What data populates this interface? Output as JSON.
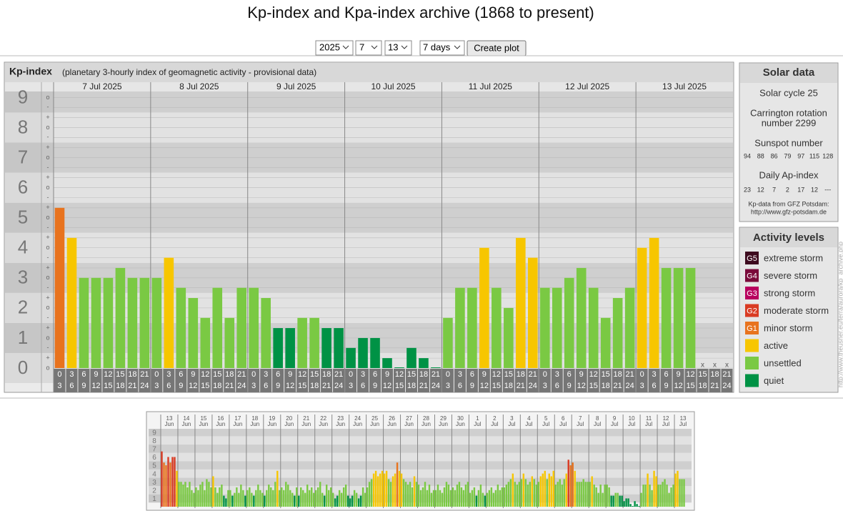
{
  "header": {
    "title": "Kp-index and Kpa-index archive (1868 to present)"
  },
  "controls": {
    "year": "2025",
    "month": "7",
    "day": "13",
    "span": "7 days",
    "button": "Create plot"
  },
  "chart_data": [
    {
      "type": "bar",
      "title": "Kp-index",
      "subtitle": "(planetary 3-hourly index of geomagnetic activity - provisional data)",
      "day_labels": [
        "7 Jul 2025",
        "8 Jul 2025",
        "9 Jul 2025",
        "10 Jul 2025",
        "11 Jul 2025",
        "12 Jul 2025",
        "13 Jul 2025"
      ],
      "categories": [
        [
          "0",
          "3"
        ],
        [
          "3",
          "6"
        ],
        [
          "6",
          "9"
        ],
        [
          "9",
          "12"
        ],
        [
          "12",
          "15"
        ],
        [
          "15",
          "18"
        ],
        [
          "18",
          "21"
        ],
        [
          "21",
          "24"
        ],
        [
          "0",
          "3"
        ],
        [
          "3",
          "6"
        ],
        [
          "6",
          "9"
        ],
        [
          "9",
          "12"
        ],
        [
          "12",
          "15"
        ],
        [
          "15",
          "18"
        ],
        [
          "18",
          "21"
        ],
        [
          "21",
          "24"
        ],
        [
          "0",
          "3"
        ],
        [
          "3",
          "6"
        ],
        [
          "6",
          "9"
        ],
        [
          "9",
          "12"
        ],
        [
          "12",
          "15"
        ],
        [
          "15",
          "18"
        ],
        [
          "18",
          "21"
        ],
        [
          "21",
          "24"
        ],
        [
          "0",
          "3"
        ],
        [
          "3",
          "6"
        ],
        [
          "6",
          "9"
        ],
        [
          "9",
          "12"
        ],
        [
          "12",
          "15"
        ],
        [
          "15",
          "18"
        ],
        [
          "18",
          "21"
        ],
        [
          "21",
          "24"
        ],
        [
          "0",
          "3"
        ],
        [
          "3",
          "6"
        ],
        [
          "6",
          "9"
        ],
        [
          "9",
          "12"
        ],
        [
          "12",
          "15"
        ],
        [
          "15",
          "18"
        ],
        [
          "18",
          "21"
        ],
        [
          "21",
          "24"
        ],
        [
          "0",
          "3"
        ],
        [
          "3",
          "6"
        ],
        [
          "6",
          "9"
        ],
        [
          "9",
          "12"
        ],
        [
          "12",
          "15"
        ],
        [
          "15",
          "18"
        ],
        [
          "18",
          "21"
        ],
        [
          "21",
          "24"
        ],
        [
          "0",
          "3"
        ],
        [
          "3",
          "6"
        ],
        [
          "6",
          "9"
        ],
        [
          "9",
          "12"
        ],
        [
          "12",
          "15"
        ],
        [
          "15",
          "18"
        ],
        [
          "18",
          "21"
        ],
        [
          "21",
          "24"
        ]
      ],
      "values": [
        5.33,
        4.33,
        3,
        3,
        3,
        3.33,
        3,
        3,
        3,
        3.67,
        2.67,
        2.33,
        1.67,
        2.67,
        1.67,
        2.67,
        2.67,
        2.33,
        1.33,
        1.33,
        1.67,
        1.67,
        1.33,
        1.33,
        0.67,
        1,
        1,
        0.33,
        0,
        0.67,
        0.33,
        0,
        1.67,
        2.67,
        2.67,
        4,
        2.67,
        2,
        4.33,
        3.67,
        2.67,
        2.67,
        3,
        3.33,
        2.67,
        1.67,
        2.33,
        2.67,
        4,
        4.33,
        3.33,
        3.33,
        3.33,
        null,
        null,
        null
      ],
      "colors": [
        "#e8731e",
        "#f7c600",
        "#7ac943",
        "#7ac943",
        "#7ac943",
        "#7ac943",
        "#7ac943",
        "#7ac943",
        "#7ac943",
        "#f7c600",
        "#7ac943",
        "#7ac943",
        "#7ac943",
        "#7ac943",
        "#7ac943",
        "#7ac943",
        "#7ac943",
        "#7ac943",
        "#009245",
        "#009245",
        "#7ac943",
        "#7ac943",
        "#009245",
        "#009245",
        "#009245",
        "#009245",
        "#009245",
        "#009245",
        "#009245",
        "#009245",
        "#009245",
        "#009245",
        "#7ac943",
        "#7ac943",
        "#7ac943",
        "#f7c600",
        "#7ac943",
        "#7ac943",
        "#f7c600",
        "#f7c600",
        "#7ac943",
        "#7ac943",
        "#7ac943",
        "#7ac943",
        "#7ac943",
        "#7ac943",
        "#7ac943",
        "#7ac943",
        "#f7c600",
        "#f7c600",
        "#7ac943",
        "#7ac943",
        "#7ac943",
        null,
        null,
        null
      ],
      "missing_label": "x",
      "ylim": [
        0,
        9.2
      ],
      "yticks": [
        0,
        1,
        2,
        3,
        4,
        5,
        6,
        7,
        8,
        9
      ],
      "minor_ticks": [
        {
          "value": 0,
          "label": "o"
        },
        {
          "value": 0.33,
          "label": "+"
        },
        {
          "value": 0.67,
          "label": "-"
        },
        {
          "value": 1,
          "label": "o"
        },
        {
          "value": 1.33,
          "label": "+"
        },
        {
          "value": 1.67,
          "label": "-"
        },
        {
          "value": 2,
          "label": "o"
        },
        {
          "value": 2.33,
          "label": "+"
        },
        {
          "value": 2.67,
          "label": "-"
        },
        {
          "value": 3,
          "label": "o"
        },
        {
          "value": 3.33,
          "label": "+"
        },
        {
          "value": 3.67,
          "label": "-"
        },
        {
          "value": 4,
          "label": "o"
        },
        {
          "value": 4.33,
          "label": "+"
        },
        {
          "value": 4.67,
          "label": "-"
        },
        {
          "value": 5,
          "label": "o"
        },
        {
          "value": 5.33,
          "label": "+"
        },
        {
          "value": 5.67,
          "label": "-"
        },
        {
          "value": 6,
          "label": "o"
        },
        {
          "value": 6.33,
          "label": "+"
        },
        {
          "value": 6.67,
          "label": "-"
        },
        {
          "value": 7,
          "label": "o"
        },
        {
          "value": 7.33,
          "label": "+"
        },
        {
          "value": 7.67,
          "label": "-"
        },
        {
          "value": 8,
          "label": "o"
        },
        {
          "value": 8.33,
          "label": "+"
        },
        {
          "value": 8.67,
          "label": "-"
        },
        {
          "value": 9,
          "label": "o"
        }
      ]
    },
    {
      "type": "bar",
      "day_labels": [
        [
          "13",
          "Jun"
        ],
        [
          "14",
          "Jun"
        ],
        [
          "15",
          "Jun"
        ],
        [
          "16",
          "Jun"
        ],
        [
          "17",
          "Jun"
        ],
        [
          "18",
          "Jun"
        ],
        [
          "19",
          "Jun"
        ],
        [
          "20",
          "Jun"
        ],
        [
          "21",
          "Jun"
        ],
        [
          "22",
          "Jun"
        ],
        [
          "23",
          "Jun"
        ],
        [
          "24",
          "Jun"
        ],
        [
          "25",
          "Jun"
        ],
        [
          "26",
          "Jun"
        ],
        [
          "27",
          "Jun"
        ],
        [
          "28",
          "Jun"
        ],
        [
          "29",
          "Jun"
        ],
        [
          "30",
          "Jun"
        ],
        [
          "1",
          "Jul"
        ],
        [
          "2",
          "Jul"
        ],
        [
          "3",
          "Jul"
        ],
        [
          "4",
          "Jul"
        ],
        [
          "5",
          "Jul"
        ],
        [
          "6",
          "Jul"
        ],
        [
          "7",
          "Jul"
        ],
        [
          "8",
          "Jul"
        ],
        [
          "9",
          "Jul"
        ],
        [
          "10",
          "Jul"
        ],
        [
          "11",
          "Jul"
        ],
        [
          "12",
          "Jul"
        ],
        [
          "13",
          "Jul"
        ]
      ],
      "values": [
        6.67,
        5.33,
        5,
        6,
        5.33,
        6,
        6,
        4.33,
        3,
        3,
        2.67,
        3,
        2.33,
        3,
        2,
        1.67,
        2.33,
        2,
        2.67,
        3,
        2,
        3.33,
        3,
        2.33,
        3.67,
        2.33,
        1.67,
        2.33,
        2.67,
        1.33,
        1,
        2,
        2,
        1.33,
        1.67,
        2.33,
        1.67,
        2.67,
        2,
        1.33,
        2,
        2.33,
        1.67,
        1.33,
        2,
        2.67,
        2,
        1.67,
        1.33,
        2,
        2.67,
        2.33,
        2,
        3,
        4.33,
        2,
        2.33,
        2,
        3,
        2.67,
        2,
        1.67,
        1.33,
        2.33,
        1.33,
        2.33,
        2,
        1.67,
        2.67,
        2,
        2.33,
        1.67,
        2,
        2.33,
        3,
        1.67,
        1.33,
        2.67,
        2,
        2.33,
        1.67,
        1,
        1.33,
        2,
        1.67,
        2.33,
        2.67,
        1.33,
        1,
        1.33,
        2,
        1.67,
        1,
        1.33,
        2.33,
        1.67,
        2.33,
        3,
        3.33,
        4,
        4.33,
        3.67,
        4,
        4.33,
        4,
        4.33,
        3.33,
        3,
        3.67,
        4,
        5.33,
        4.33,
        4,
        3.33,
        3,
        2.67,
        3,
        2.33,
        3.67,
        3,
        2.67,
        2,
        2.33,
        3,
        2,
        2.67,
        1.67,
        2,
        2,
        2.67,
        2,
        1.67,
        2.33,
        3,
        2.67,
        2,
        2.33,
        2,
        2.67,
        3,
        2.33,
        2,
        2.67,
        3,
        1.67,
        2,
        2.33,
        1.33,
        2,
        2.67,
        1.67,
        1.33,
        1.67,
        2,
        2.33,
        1.67,
        2,
        2.67,
        2,
        2.33,
        2.33,
        2.67,
        3,
        3.33,
        4,
        3,
        2.67,
        3,
        3.33,
        4,
        3.33,
        2.67,
        3,
        3.67,
        3.33,
        2.67,
        3,
        3.67,
        4,
        4.33,
        3.33,
        4,
        3.67,
        4.33,
        2.67,
        3,
        3.33,
        2.67,
        3.33,
        4,
        5.67,
        5,
        5.33,
        4.33,
        3,
        3,
        3,
        3.33,
        3,
        3,
        3,
        3.67,
        2.67,
        2.33,
        1.67,
        2.67,
        1.67,
        2.67,
        2.67,
        2.33,
        1.33,
        1.33,
        1.67,
        1.67,
        1.33,
        1.33,
        0.67,
        1,
        1,
        0.33,
        0,
        0.67,
        0.33,
        0,
        1.67,
        2.67,
        2.67,
        4,
        2.67,
        2,
        4.33,
        3.67,
        2.67,
        2.67,
        3,
        3.33,
        2.67,
        1.67,
        2.33,
        2.67,
        4,
        4.33,
        3.33,
        3.33,
        3.33,
        null,
        null,
        null
      ],
      "colors": [
        "#d93b23",
        "#e8731e",
        "#e8731e",
        "#d93b23",
        "#e8731e",
        "#d93b23",
        "#d93b23",
        "#f7c600",
        "#7ac943",
        "#7ac943",
        "#7ac943",
        "#7ac943",
        "#7ac943",
        "#7ac943",
        "#7ac943",
        "#7ac943",
        "#7ac943",
        "#7ac943",
        "#7ac943",
        "#7ac943",
        "#7ac943",
        "#7ac943",
        "#7ac943",
        "#7ac943",
        "#f7c600",
        "#7ac943",
        "#7ac943",
        "#7ac943",
        "#7ac943",
        "#009245",
        "#009245",
        "#7ac943",
        "#7ac943",
        "#009245",
        "#7ac943",
        "#7ac943",
        "#7ac943",
        "#7ac943",
        "#7ac943",
        "#009245",
        "#7ac943",
        "#7ac943",
        "#7ac943",
        "#009245",
        "#7ac943",
        "#7ac943",
        "#7ac943",
        "#7ac943",
        "#009245",
        "#7ac943",
        "#7ac943",
        "#7ac943",
        "#7ac943",
        "#7ac943",
        "#f7c600",
        "#7ac943",
        "#7ac943",
        "#7ac943",
        "#7ac943",
        "#7ac943",
        "#7ac943",
        "#7ac943",
        "#009245",
        "#7ac943",
        "#009245",
        "#7ac943",
        "#7ac943",
        "#7ac943",
        "#7ac943",
        "#7ac943",
        "#7ac943",
        "#7ac943",
        "#7ac943",
        "#7ac943",
        "#7ac943",
        "#7ac943",
        "#009245",
        "#7ac943",
        "#7ac943",
        "#7ac943",
        "#7ac943",
        "#009245",
        "#009245",
        "#7ac943",
        "#7ac943",
        "#7ac943",
        "#7ac943",
        "#009245",
        "#009245",
        "#009245",
        "#7ac943",
        "#7ac943",
        "#009245",
        "#009245",
        "#7ac943",
        "#7ac943",
        "#7ac943",
        "#7ac943",
        "#7ac943",
        "#f7c600",
        "#f7c600",
        "#f7c600",
        "#f7c600",
        "#f7c600",
        "#f7c600",
        "#f7c600",
        "#7ac943",
        "#7ac943",
        "#f7c600",
        "#f7c600",
        "#e8731e",
        "#f7c600",
        "#f7c600",
        "#7ac943",
        "#7ac943",
        "#7ac943",
        "#7ac943",
        "#7ac943",
        "#f7c600",
        "#7ac943",
        "#7ac943",
        "#7ac943",
        "#7ac943",
        "#7ac943",
        "#7ac943",
        "#7ac943",
        "#7ac943",
        "#7ac943",
        "#7ac943",
        "#7ac943",
        "#7ac943",
        "#7ac943",
        "#7ac943",
        "#7ac943",
        "#7ac943",
        "#7ac943",
        "#7ac943",
        "#7ac943",
        "#7ac943",
        "#7ac943",
        "#7ac943",
        "#7ac943",
        "#7ac943",
        "#7ac943",
        "#7ac943",
        "#7ac943",
        "#7ac943",
        "#009245",
        "#7ac943",
        "#7ac943",
        "#7ac943",
        "#009245",
        "#7ac943",
        "#7ac943",
        "#7ac943",
        "#7ac943",
        "#7ac943",
        "#7ac943",
        "#7ac943",
        "#7ac943",
        "#7ac943",
        "#7ac943",
        "#7ac943",
        "#7ac943",
        "#f7c600",
        "#7ac943",
        "#7ac943",
        "#7ac943",
        "#7ac943",
        "#f7c600",
        "#7ac943",
        "#7ac943",
        "#7ac943",
        "#f7c600",
        "#7ac943",
        "#7ac943",
        "#7ac943",
        "#f7c600",
        "#f7c600",
        "#f7c600",
        "#7ac943",
        "#f7c600",
        "#f7c600",
        "#f7c600",
        "#7ac943",
        "#7ac943",
        "#7ac943",
        "#7ac943",
        "#7ac943",
        "#f7c600",
        "#d93b23",
        "#e8731e",
        "#e8731e",
        "#f7c600",
        "#7ac943",
        "#7ac943",
        "#7ac943",
        "#7ac943",
        "#7ac943",
        "#7ac943",
        "#7ac943",
        "#f7c600",
        "#7ac943",
        "#7ac943",
        "#7ac943",
        "#7ac943",
        "#7ac943",
        "#7ac943",
        "#7ac943",
        "#7ac943",
        "#009245",
        "#009245",
        "#7ac943",
        "#7ac943",
        "#009245",
        "#009245",
        "#009245",
        "#009245",
        "#009245",
        "#009245",
        "#009245",
        "#009245",
        "#009245",
        "#009245",
        "#7ac943",
        "#7ac943",
        "#7ac943",
        "#f7c600",
        "#7ac943",
        "#7ac943",
        "#f7c600",
        "#f7c600",
        "#7ac943",
        "#7ac943",
        "#7ac943",
        "#7ac943",
        "#7ac943",
        "#7ac943",
        "#7ac943",
        "#7ac943",
        "#f7c600",
        "#f7c600",
        "#7ac943",
        "#7ac943",
        "#7ac943",
        null,
        null,
        null
      ],
      "ylim": [
        0,
        9.4
      ],
      "yticks": [
        1,
        2,
        3,
        4,
        5,
        6,
        7,
        8,
        9
      ]
    }
  ],
  "solar_data": {
    "title": "Solar data",
    "cycle": "Solar cycle 25",
    "carrington": [
      "Carrington rotation",
      "number 2299"
    ],
    "sunspot_title": "Sunspot number",
    "sunspots": [
      "94",
      "88",
      "86",
      "79",
      "97",
      "115",
      "128"
    ],
    "ap_title": "Daily Ap-index",
    "ap": [
      "23",
      "12",
      "7",
      "2",
      "17",
      "12",
      "---"
    ],
    "source": [
      "Kp-data from GFZ Potsdam:",
      "http://www.gfz-potsdam.de"
    ]
  },
  "activity_levels": {
    "title": "Activity levels",
    "items": [
      {
        "badge": "G5",
        "name": "extreme storm",
        "color": "#3d0a1e"
      },
      {
        "badge": "G4",
        "name": "severe storm",
        "color": "#7a0a3a"
      },
      {
        "badge": "G3",
        "name": "strong storm",
        "color": "#b8005e"
      },
      {
        "badge": "G2",
        "name": "moderate storm",
        "color": "#d93b23"
      },
      {
        "badge": "G1",
        "name": "minor storm",
        "color": "#e8731e"
      },
      {
        "name": "active",
        "color": "#f7c600"
      },
      {
        "name": "unsettled",
        "color": "#7ac943"
      },
      {
        "name": "quiet",
        "color": "#009245"
      }
    ]
  },
  "side_note": "http://www.theusner.eu/terra/aurora/kp_archive.php"
}
